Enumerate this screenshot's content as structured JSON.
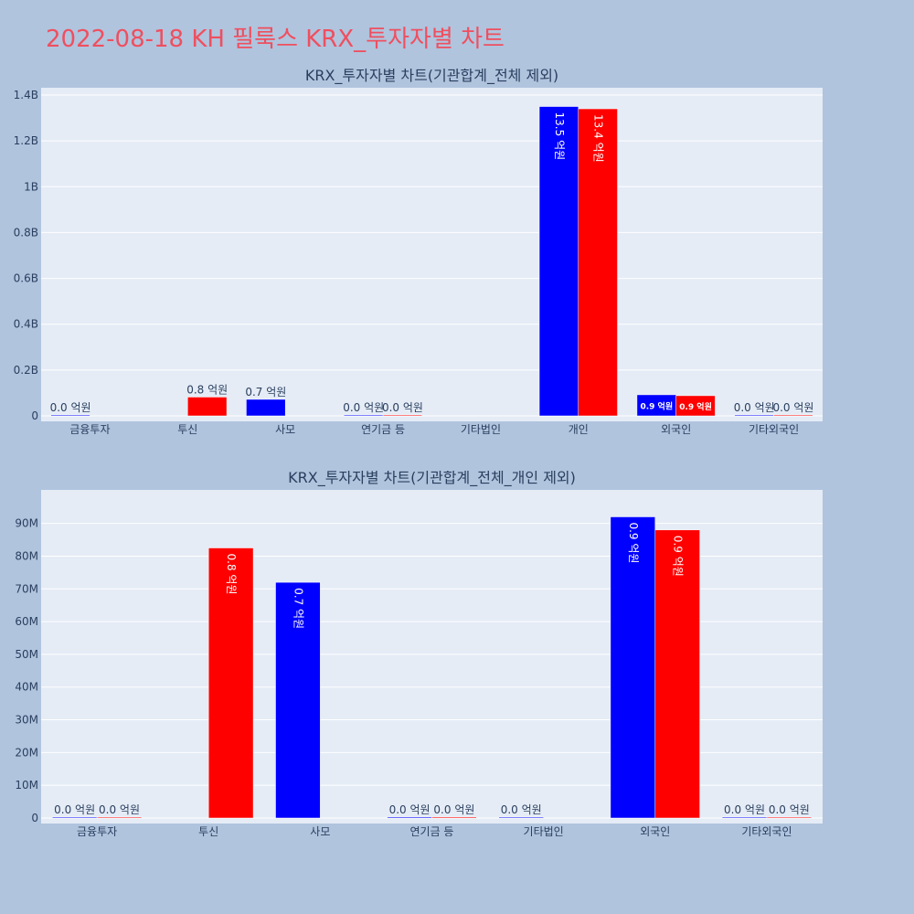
{
  "page_title": "2022-08-18 KH 필룩스 KRX_투자자별 차트",
  "colors": {
    "buy": "#0000ff",
    "sell": "#ff0000",
    "plot_bg": "#e5ecf6",
    "page_bg": "#b0c4de",
    "title": "#ef4f5f"
  },
  "chart_data": [
    {
      "type": "bar",
      "title": "KRX_투자자별 차트(기관합계_전체 제외)",
      "categories": [
        "금융투자",
        "투신",
        "사모",
        "연기금 등",
        "기타법인",
        "개인",
        "외국인",
        "기타외국인"
      ],
      "ylim": [
        0,
        1400000000
      ],
      "yticks": [
        0,
        200000000,
        400000000,
        600000000,
        800000000,
        1000000000,
        1200000000,
        1400000000
      ],
      "ytick_labels": [
        "0",
        "0.2B",
        "0.4B",
        "0.6B",
        "0.8B",
        "1B",
        "1.2B",
        "1.4B"
      ],
      "grid": true,
      "label_orientation": "horizontal",
      "series": [
        {
          "color": "#0000ff",
          "values": [
            2000000,
            null,
            72000000,
            2000000,
            null,
            1350000000,
            92000000,
            500000
          ],
          "labels": [
            "0.0 억원",
            "",
            "0.7 억원",
            "0.0 억원",
            "",
            "13.5 억원",
            "0.9 억원",
            "0.0 억원"
          ]
        },
        {
          "color": "#ff0000",
          "values": [
            null,
            82000000,
            null,
            500000,
            null,
            1340000000,
            88000000,
            500000
          ],
          "labels": [
            "",
            "0.8 억원",
            "",
            "0.0 억원",
            "",
            "13.4 억원",
            "0.9 억원",
            "0.0 억원"
          ]
        }
      ]
    },
    {
      "type": "bar",
      "title": "KRX_투자자별 차트(기관합계_전체_개인 제외)",
      "categories": [
        "금융투자",
        "투신",
        "사모",
        "연기금 등",
        "기타법인",
        "외국인",
        "기타외국인"
      ],
      "ylim": [
        0,
        98000000
      ],
      "yticks": [
        0,
        10000000,
        20000000,
        30000000,
        40000000,
        50000000,
        60000000,
        70000000,
        80000000,
        90000000
      ],
      "ytick_labels": [
        "0",
        "10M",
        "20M",
        "30M",
        "40M",
        "50M",
        "60M",
        "70M",
        "80M",
        "90M"
      ],
      "grid": true,
      "label_orientation": "vertical",
      "series": [
        {
          "color": "#0000ff",
          "values": [
            100000,
            null,
            72000000,
            300000,
            100000,
            92000000,
            100000
          ],
          "labels": [
            "0.0 억원",
            "",
            "0.7 억원",
            "0.0 억원",
            "0.0 억원",
            "0.9 억원",
            "0.0 억원"
          ]
        },
        {
          "color": "#ff0000",
          "values": [
            100000,
            82500000,
            null,
            300000,
            null,
            88000000,
            100000
          ],
          "labels": [
            "0.0 억원",
            "0.8 억원",
            "",
            "0.0 억원",
            "",
            "0.9 억원",
            "0.0 억원"
          ]
        }
      ]
    }
  ]
}
